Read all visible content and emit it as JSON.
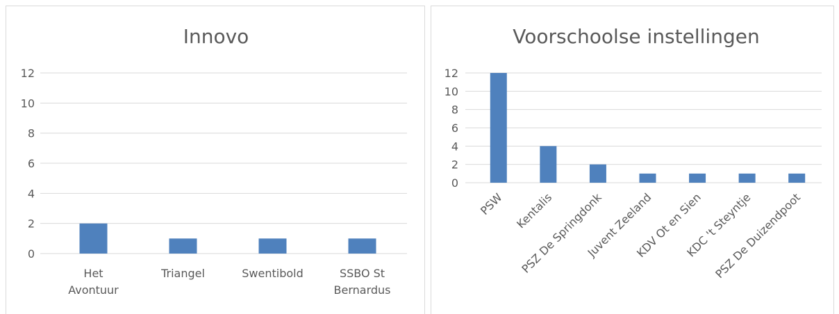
{
  "chart_data": [
    {
      "type": "bar",
      "title": "Innovo",
      "categories": [
        "Het Avontuur",
        "Triangel",
        "Swentibold",
        "SSBO St Bernardus"
      ],
      "values": [
        2,
        1,
        1,
        1
      ],
      "color": "#4f81bd",
      "ylim": [
        0,
        12
      ],
      "yticks": [
        0,
        2,
        4,
        6,
        8,
        10,
        12
      ],
      "grid": true
    },
    {
      "type": "bar",
      "title": "Voorschoolse instellingen",
      "categories": [
        "PSW",
        "Kentalis",
        "PSZ De Springdonk",
        "Juvent Zeeland",
        "KDV Ot en Sien",
        "KDC 't Steyntje",
        "PSZ De Duizendpoot"
      ],
      "values": [
        12,
        4,
        2,
        1,
        1,
        1,
        1
      ],
      "color": "#4f81bd",
      "ylim": [
        0,
        12
      ],
      "yticks": [
        0,
        2,
        4,
        6,
        8,
        10,
        12
      ],
      "grid": true
    }
  ]
}
